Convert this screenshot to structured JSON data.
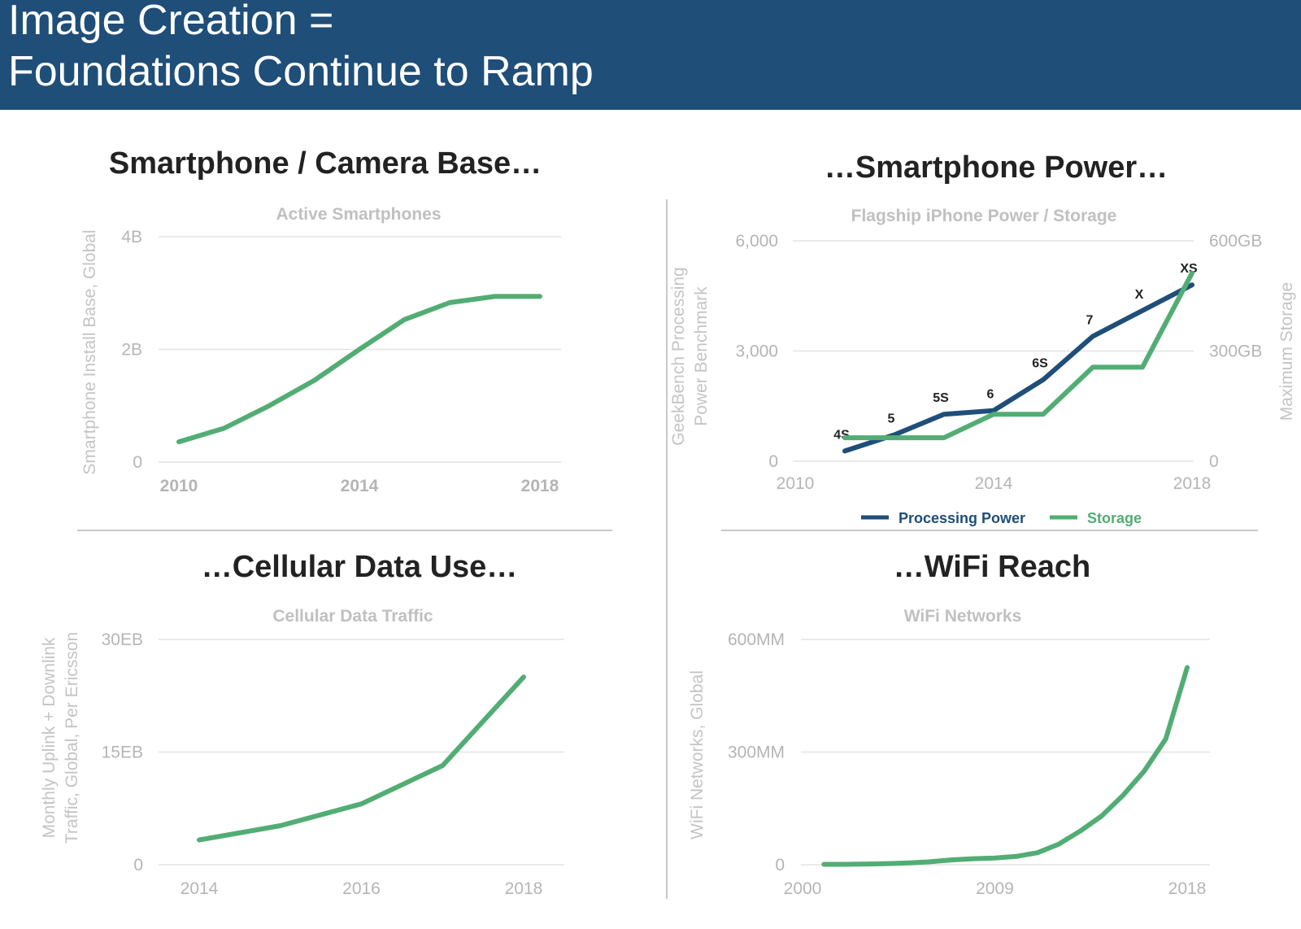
{
  "header": {
    "line1": "Image Creation =",
    "line2": "Foundations Continue to Ramp"
  },
  "colors": {
    "header_bg": "#1f4e79",
    "green": "#52ad74",
    "navy": "#1f4e79"
  },
  "panels": {
    "p1": {
      "title": "Smartphone / Camera Base…"
    },
    "p2": {
      "title": "…Smartphone Power…"
    },
    "p3": {
      "title": "…Cellular Data Use…"
    },
    "p4": {
      "title": "…WiFi Reach"
    }
  },
  "chart_data": [
    {
      "id": "c1",
      "type": "line",
      "subtitle": "Active Smartphones",
      "ylabel": "Smartphone Install Base, Global",
      "xlim": [
        2010,
        2018
      ],
      "ylim": [
        0,
        4
      ],
      "x_ticks": [
        {
          "v": 2010,
          "label": "2010"
        },
        {
          "v": 2014,
          "label": "2014"
        },
        {
          "v": 2018,
          "label": "2018"
        }
      ],
      "y_ticks": [
        {
          "v": 0,
          "label": "0"
        },
        {
          "v": 2,
          "label": "2B"
        },
        {
          "v": 4,
          "label": "4B"
        }
      ],
      "series": [
        {
          "color": "#52ad74",
          "x": [
            2010,
            2011,
            2012,
            2013,
            2014,
            2015,
            2016,
            2017,
            2018
          ],
          "y": [
            0.36,
            0.6,
            1.0,
            1.45,
            2.0,
            2.53,
            2.83,
            2.94,
            2.94
          ]
        }
      ]
    },
    {
      "id": "c2",
      "type": "line",
      "subtitle": "Flagship iPhone Power / Storage",
      "ylabel": "GeekBench Processing Power Benchmark",
      "ylabel_lines": [
        "GeekBench Processing",
        "Power Benchmark"
      ],
      "y2label": "Maximum Storage",
      "xlim": [
        2010,
        2018
      ],
      "ylim": [
        0,
        6000
      ],
      "y2lim": [
        0,
        600
      ],
      "x_ticks": [
        {
          "v": 2010,
          "label": "2010"
        },
        {
          "v": 2014,
          "label": "2014"
        },
        {
          "v": 2018,
          "label": "2018"
        }
      ],
      "y_ticks": [
        {
          "v": 0,
          "label": "0"
        },
        {
          "v": 3000,
          "label": "3,000"
        },
        {
          "v": 6000,
          "label": "6,000"
        }
      ],
      "y2_ticks": [
        {
          "v": 0,
          "label": "0"
        },
        {
          "v": 300,
          "label": "300GB"
        },
        {
          "v": 600,
          "label": "600GB"
        }
      ],
      "legend": [
        "Processing Power",
        "Storage"
      ],
      "series": [
        {
          "name": "Processing Power",
          "color": "#1f4e79",
          "axis": "left",
          "x": [
            2011,
            2012,
            2013,
            2014,
            2015,
            2016,
            2017,
            2018
          ],
          "y": [
            280,
            720,
            1280,
            1380,
            2220,
            3400,
            4100,
            4800
          ],
          "labels": [
            "4S",
            "5",
            "5S",
            "6",
            "6S",
            "7",
            "X",
            "XS"
          ]
        },
        {
          "name": "Storage",
          "color": "#52ad74",
          "axis": "right",
          "x": [
            2011,
            2012,
            2013,
            2014,
            2015,
            2016,
            2017,
            2018
          ],
          "y": [
            64,
            64,
            64,
            128,
            128,
            256,
            256,
            512
          ]
        }
      ]
    },
    {
      "id": "c3",
      "type": "line",
      "subtitle": "Cellular Data Traffic",
      "ylabel": "Monthly Uplink + Downlink Traffic, Global, Per Ericsson",
      "ylabel_lines": [
        "Monthly Uplink + Downlink",
        "Traffic, Global, Per Ericsson"
      ],
      "xlim": [
        2014,
        2018
      ],
      "ylim": [
        0,
        30
      ],
      "x_ticks": [
        {
          "v": 2014,
          "label": "2014"
        },
        {
          "v": 2016,
          "label": "2016"
        },
        {
          "v": 2018,
          "label": "2018"
        }
      ],
      "y_ticks": [
        {
          "v": 0,
          "label": "0"
        },
        {
          "v": 15,
          "label": "15EB"
        },
        {
          "v": 30,
          "label": "30EB"
        }
      ],
      "series": [
        {
          "color": "#52ad74",
          "x": [
            2014,
            2015,
            2016,
            2017,
            2018
          ],
          "y": [
            3.3,
            5.2,
            8.1,
            13.2,
            25.0
          ]
        }
      ]
    },
    {
      "id": "c4",
      "type": "line",
      "subtitle": "WiFi Networks",
      "ylabel": "WiFi Networks, Global",
      "xlim": [
        2000,
        2018
      ],
      "ylim": [
        0,
        600
      ],
      "x_ticks": [
        {
          "v": 2000,
          "label": "2000"
        },
        {
          "v": 2009,
          "label": "2009"
        },
        {
          "v": 2018,
          "label": "2018"
        }
      ],
      "y_ticks": [
        {
          "v": 0,
          "label": "0"
        },
        {
          "v": 300,
          "label": "300MM"
        },
        {
          "v": 600,
          "label": "600MM"
        }
      ],
      "series": [
        {
          "color": "#52ad74",
          "x": [
            2001,
            2002,
            2003,
            2004,
            2005,
            2006,
            2007,
            2008,
            2009,
            2010,
            2011,
            2012,
            2013,
            2014,
            2015,
            2016,
            2017,
            2018
          ],
          "y": [
            1,
            1,
            2,
            3,
            5,
            8,
            13,
            16,
            18,
            22,
            32,
            55,
            90,
            130,
            185,
            250,
            335,
            525
          ]
        }
      ]
    }
  ]
}
